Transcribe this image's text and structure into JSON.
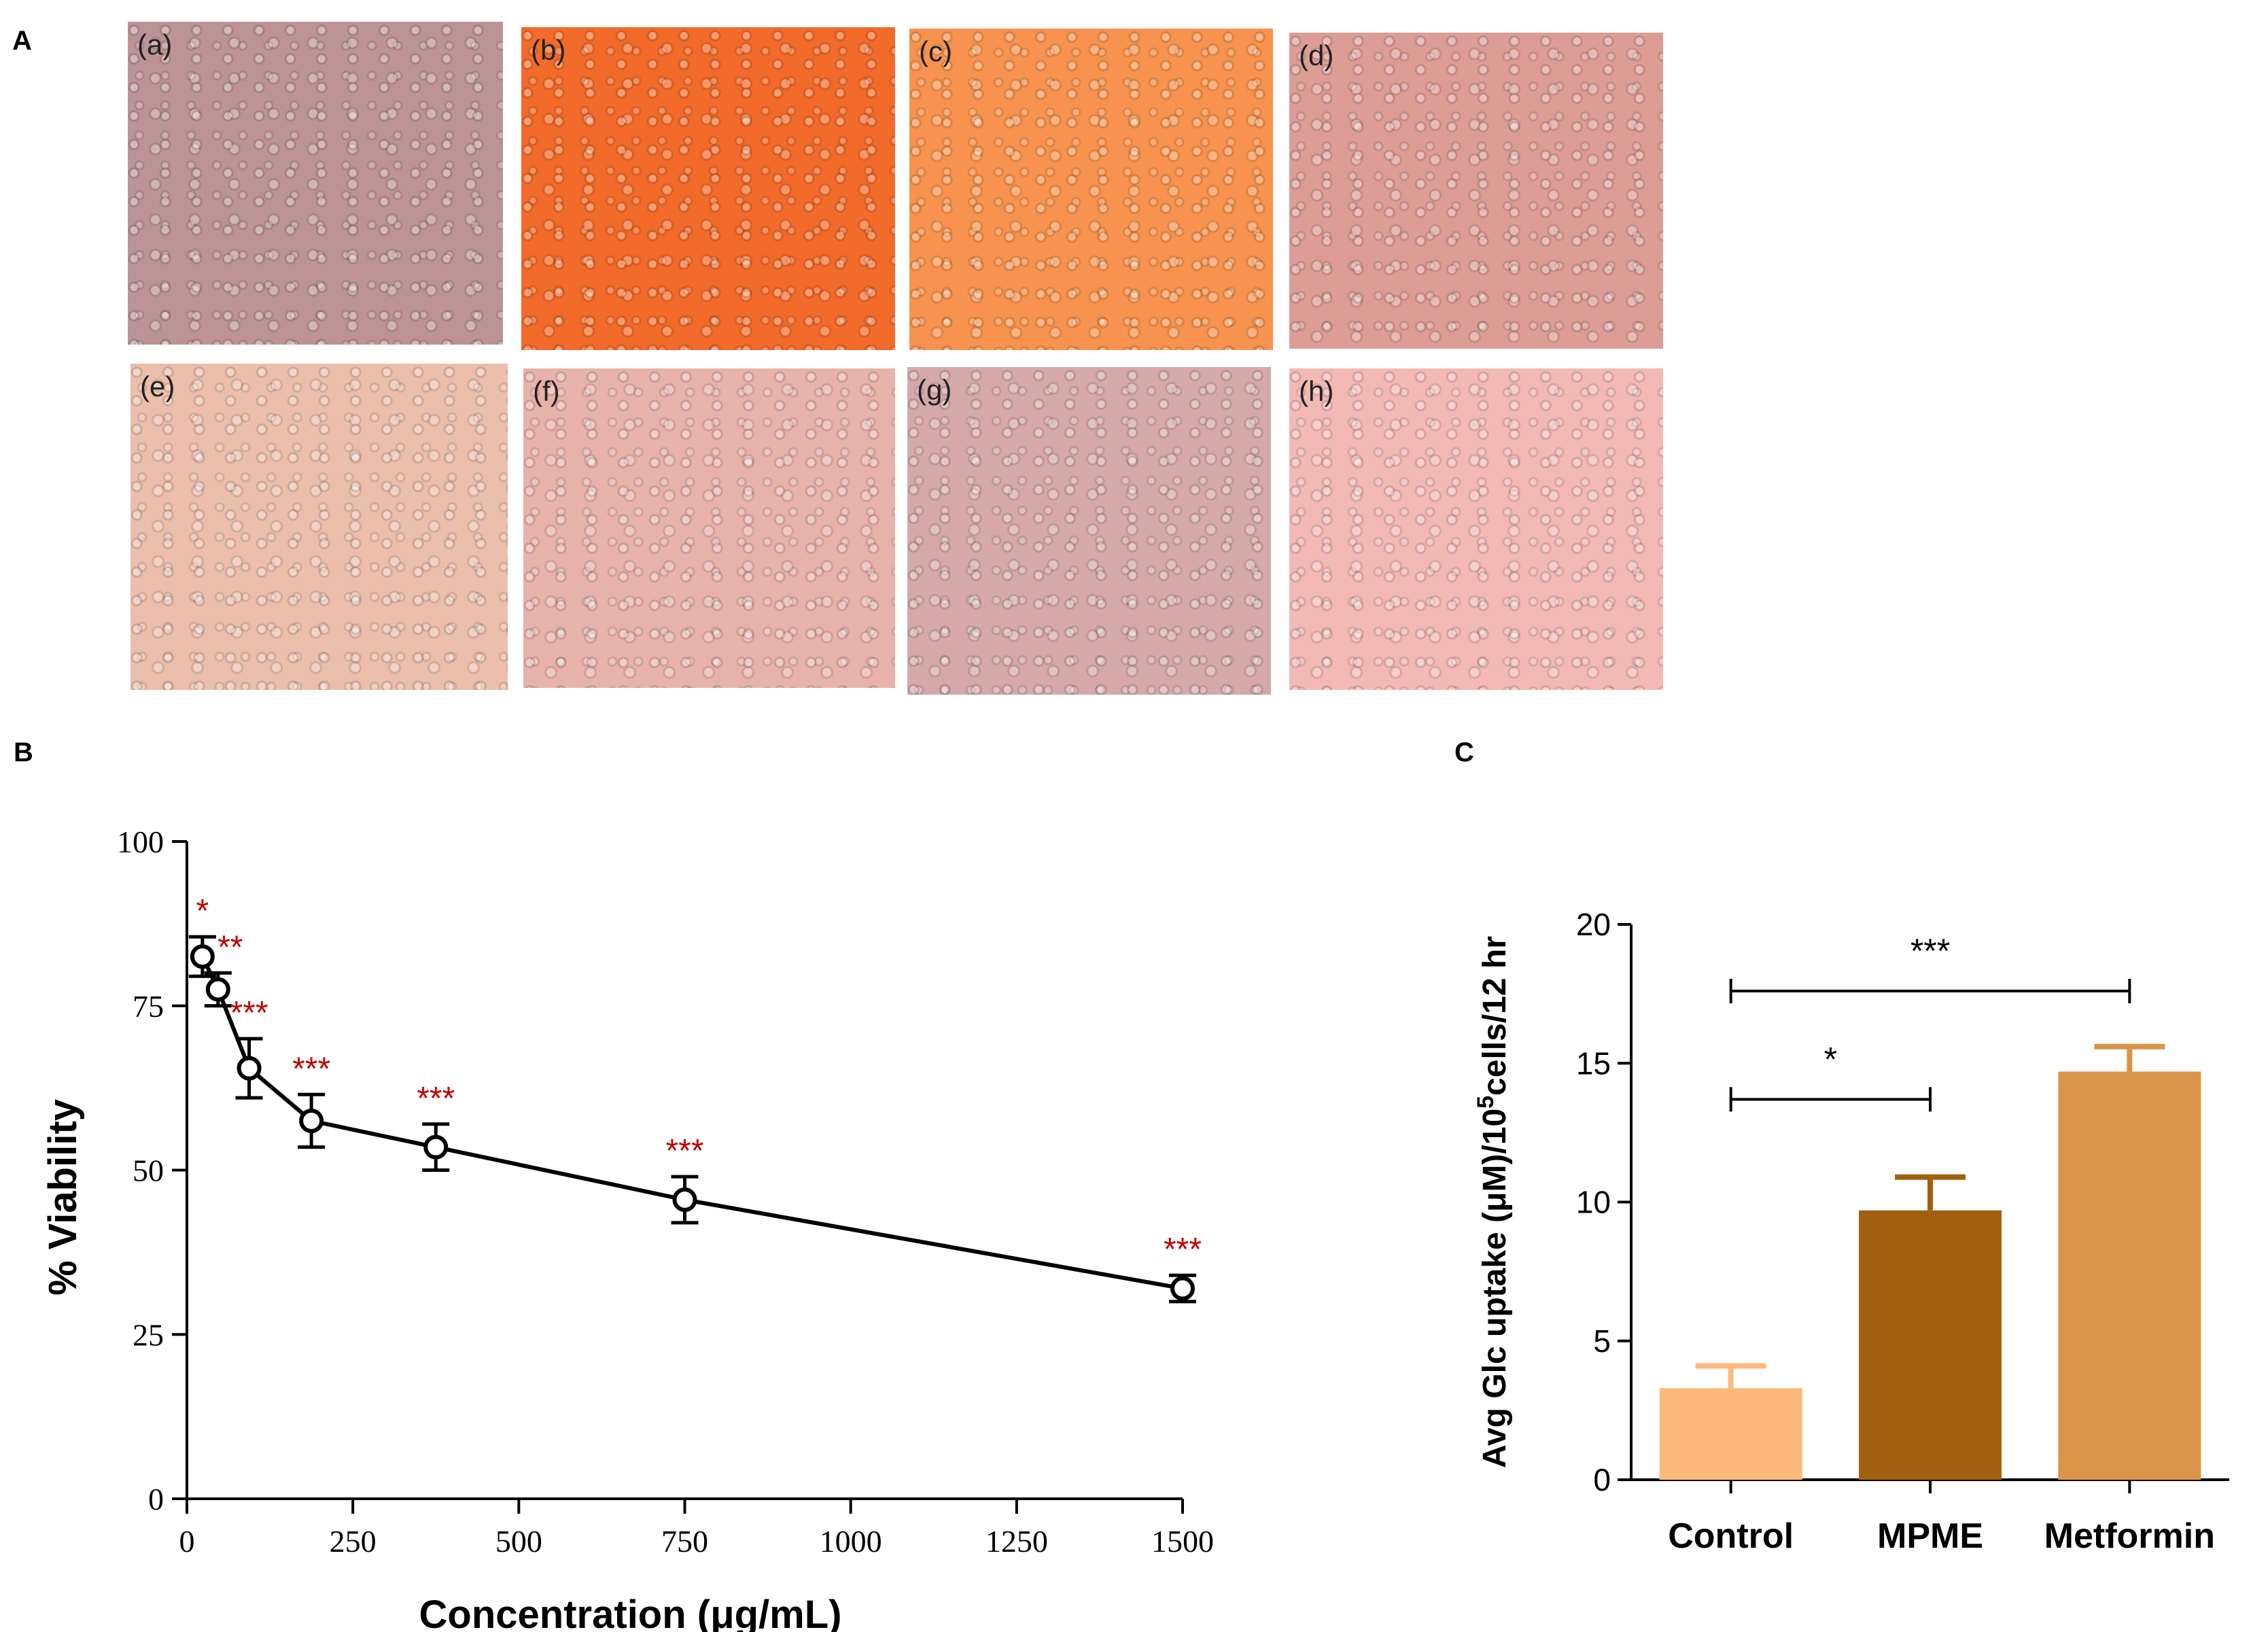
{
  "panels": {
    "a_label": "A",
    "b_label": "B",
    "c_label": "C"
  },
  "micrographs": [
    {
      "label": "(a)",
      "color": "#bd9496"
    },
    {
      "label": "(b)",
      "color": "#f26b2a"
    },
    {
      "label": "(c)",
      "color": "#f7934e"
    },
    {
      "label": "(d)",
      "color": "#dc9d95"
    },
    {
      "label": "(e)",
      "color": "#ebbfac"
    },
    {
      "label": "(f)",
      "color": "#e7b2aa"
    },
    {
      "label": "(g)",
      "color": "#d5a9aa"
    },
    {
      "label": "(h)",
      "color": "#f2b9b5"
    }
  ],
  "chart_data": [
    {
      "type": "line",
      "title": "",
      "xlabel": "Concentration (μg/mL)",
      "ylabel": "% Viability",
      "xlim": [
        0,
        1500
      ],
      "ylim": [
        0,
        100
      ],
      "xticks": [
        0,
        250,
        500,
        750,
        1000,
        1250,
        1500
      ],
      "yticks": [
        0,
        25,
        50,
        75,
        100
      ],
      "series": [
        {
          "name": "Viability",
          "x": [
            23.4,
            46.9,
            93.75,
            187.5,
            375,
            750,
            1500
          ],
          "y": [
            82.5,
            77.5,
            65.5,
            57.5,
            53.5,
            45.5,
            32
          ],
          "err": [
            3,
            2.5,
            4.5,
            4,
            3.5,
            3.5,
            2
          ]
        }
      ],
      "annotations": [
        "*",
        "**",
        "***",
        "***",
        "***",
        "***",
        "***"
      ],
      "annotation_color": "#c00000",
      "line_color": "#000000"
    },
    {
      "type": "bar",
      "title": "",
      "xlabel": "",
      "ylabel_parts": {
        "pre": "Avg Glc uptake (μM)/10",
        "sup": "5",
        "post": "cells/12 hr"
      },
      "categories": [
        "Control",
        "MPME",
        "Metformin"
      ],
      "values": [
        3.3,
        9.7,
        14.7
      ],
      "err": [
        0.8,
        1.2,
        0.9
      ],
      "colors": [
        "#fdb97b",
        "#a1600f",
        "#d9944a"
      ],
      "ylim": [
        0,
        20
      ],
      "yticks": [
        0,
        5,
        10,
        15,
        20
      ],
      "significance": [
        {
          "from": 0,
          "to": 1,
          "label": "*"
        },
        {
          "from": 0,
          "to": 2,
          "label": "***"
        }
      ]
    }
  ]
}
